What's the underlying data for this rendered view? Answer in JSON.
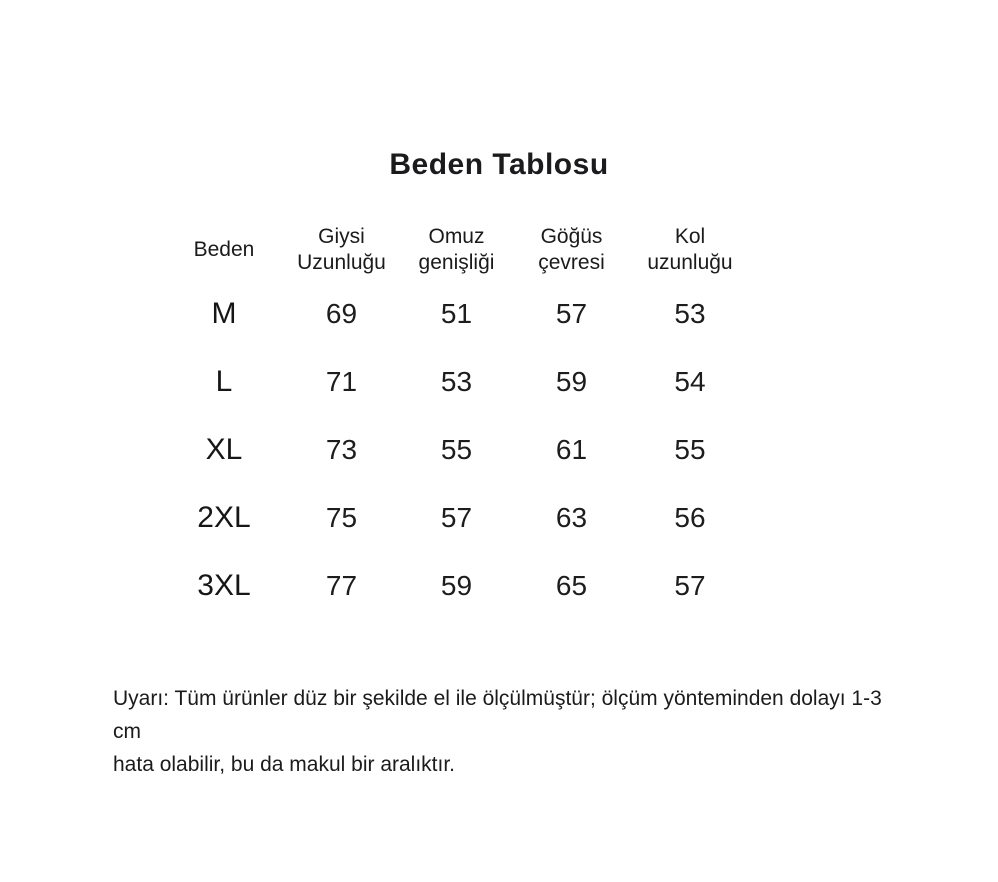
{
  "page": {
    "title": "Beden Tablosu",
    "note": "Uyarı: Tüm ürünler düz bir şekilde el ile ölçülmüştür; ölçüm yönteminden dolayı 1-3 cm\nhata olabilir, bu da makul bir aralıktır.",
    "text_color": "#1d1d1f",
    "background_color": "#ffffff"
  },
  "chart_data": {
    "type": "table",
    "title": "Beden Tablosu",
    "columns": [
      "Beden",
      "Giysi\nUzunluğu",
      "Omuz\ngenişliği",
      "Göğüs\nçevresi",
      "Kol\nuzunluğu"
    ],
    "rows": [
      [
        "M",
        "69",
        "51",
        "57",
        "53"
      ],
      [
        "L",
        "71",
        "53",
        "59",
        "54"
      ],
      [
        "XL",
        "73",
        "55",
        "61",
        "55"
      ],
      [
        "2XL",
        "75",
        "57",
        "63",
        "56"
      ],
      [
        "3XL",
        "77",
        "59",
        "65",
        "57"
      ]
    ],
    "units": "cm",
    "layout": "centered columns, no gridlines, white background"
  }
}
